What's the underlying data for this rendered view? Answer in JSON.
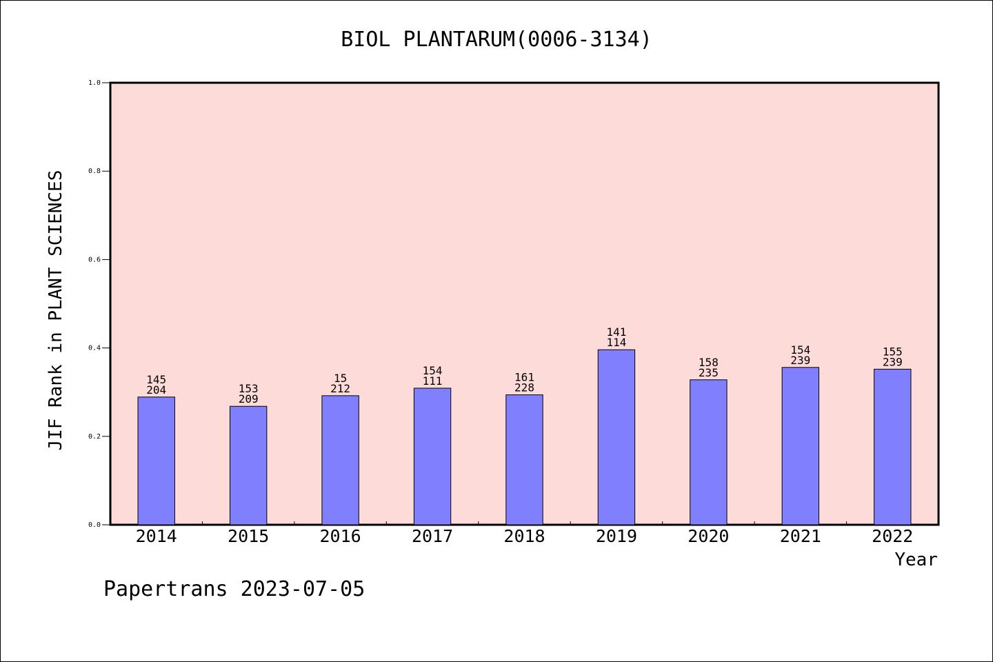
{
  "chart_data": {
    "type": "bar",
    "title": "BIOL PLANTARUM(0006-3134)",
    "xlabel": "Year",
    "ylabel": "JIF Rank in PLANT SCIENCES",
    "ylim": [
      0,
      1.0
    ],
    "yticks": [
      "0.0",
      "0.2",
      "0.4",
      "0.6",
      "0.8",
      "1.0"
    ],
    "categories": [
      "2014",
      "2015",
      "2016",
      "2017",
      "2018",
      "2019",
      "2020",
      "2021",
      "2022"
    ],
    "values": [
      0.289,
      0.268,
      0.292,
      0.309,
      0.294,
      0.396,
      0.328,
      0.356,
      0.352
    ],
    "labels_top": [
      "145",
      "153",
      "15",
      "154",
      "161",
      "141",
      "158",
      "154",
      "155"
    ],
    "labels_bottom": [
      "204",
      "209",
      "212",
      "111",
      "228",
      "114",
      "235",
      "239",
      "239"
    ],
    "grid": false,
    "colors": {
      "plot_bg": "#fddbd8",
      "bar": "#8080ff",
      "bar_edge": "#000000"
    }
  },
  "footer": "Papertrans 2023-07-05"
}
